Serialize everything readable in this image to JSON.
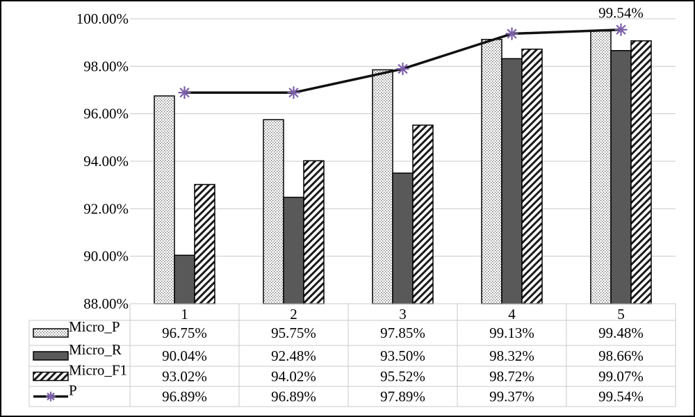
{
  "chart_data": {
    "type": "bar",
    "categories": [
      "1",
      "2",
      "3",
      "4",
      "5"
    ],
    "ylim": [
      88,
      100
    ],
    "y_ticks": [
      "88.00%",
      "90.00%",
      "92.00%",
      "94.00%",
      "96.00%",
      "98.00%",
      "100.00%"
    ],
    "grid": true,
    "legend_placement": "data table left column",
    "series": [
      {
        "name": "Micro_P",
        "type": "bar",
        "pattern": "dots",
        "values": [
          96.75,
          95.75,
          97.85,
          99.13,
          99.48
        ],
        "labels": [
          "96.75%",
          "95.75%",
          "97.85%",
          "99.13%",
          "99.48%"
        ]
      },
      {
        "name": "Micro_R",
        "type": "bar",
        "pattern": "solid",
        "color": "#595959",
        "values": [
          90.04,
          92.48,
          93.5,
          98.32,
          98.66
        ],
        "labels": [
          "90.04%",
          "92.48%",
          "93.50%",
          "98.32%",
          "98.66%"
        ]
      },
      {
        "name": "Micro_F1",
        "type": "bar",
        "pattern": "diagonal-stripes",
        "values": [
          93.02,
          94.02,
          95.52,
          98.72,
          99.07
        ],
        "labels": [
          "93.02%",
          "94.02%",
          "95.52%",
          "98.72%",
          "99.07%"
        ]
      },
      {
        "name": "P",
        "type": "line",
        "marker": "asterisk",
        "marker_color": "#7b5ea8",
        "values": [
          96.89,
          96.89,
          97.89,
          99.37,
          99.54
        ],
        "labels": [
          "96.89%",
          "96.89%",
          "97.89%",
          "99.37%",
          "99.54%"
        ]
      }
    ],
    "annotations": [
      {
        "text": "99.54%",
        "series": "P",
        "category": "5"
      }
    ]
  }
}
